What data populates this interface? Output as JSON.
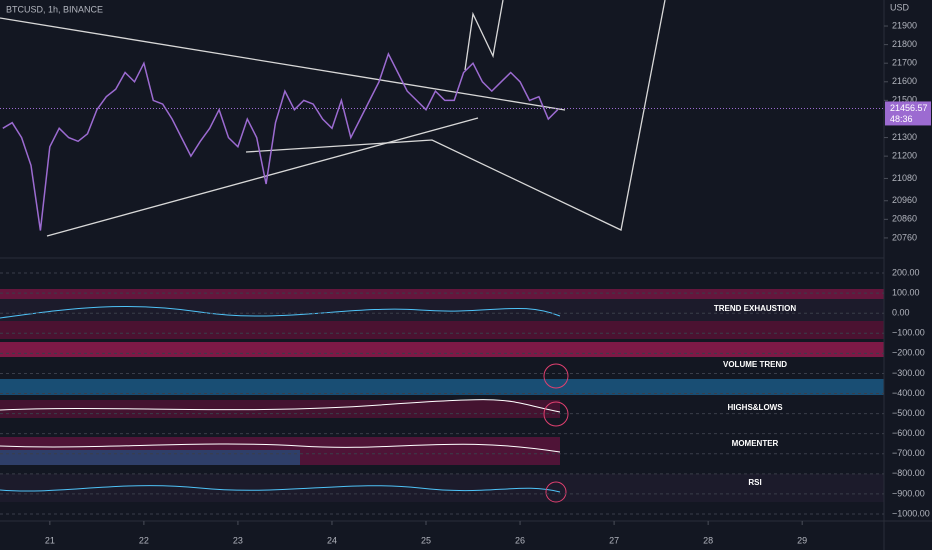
{
  "header": {
    "symbol": "BTCUSD, 1h, BINANCE",
    "currency": "USD"
  },
  "chart_data": {
    "type": "line",
    "color": "#9c6bd1",
    "x": [
      20.5,
      20.6,
      20.7,
      20.8,
      20.9,
      21.0,
      21.1,
      21.2,
      21.3,
      21.4,
      21.5,
      21.6,
      21.7,
      21.8,
      21.9,
      22.0,
      22.1,
      22.2,
      22.3,
      22.4,
      22.5,
      22.6,
      22.7,
      22.8,
      22.9,
      23.0,
      23.1,
      23.2,
      23.3,
      23.4,
      23.5,
      23.6,
      23.7,
      23.8,
      23.9,
      24.0,
      24.1,
      24.2,
      24.3,
      24.4,
      24.5,
      24.6,
      24.7,
      24.8,
      24.9,
      25.0,
      25.1,
      25.2,
      25.3,
      25.4,
      25.5,
      25.6,
      25.7,
      25.8,
      25.9,
      26.0,
      26.1,
      26.2,
      26.3,
      26.4
    ],
    "values": [
      21350,
      21380,
      21300,
      21150,
      20800,
      21250,
      21350,
      21300,
      21280,
      21320,
      21450,
      21520,
      21560,
      21650,
      21600,
      21700,
      21500,
      21480,
      21400,
      21300,
      21200,
      21280,
      21350,
      21450,
      21300,
      21250,
      21400,
      21300,
      21050,
      21380,
      21550,
      21450,
      21500,
      21480,
      21400,
      21350,
      21500,
      21300,
      21400,
      21500,
      21600,
      21750,
      21650,
      21550,
      21500,
      21450,
      21550,
      21500,
      21500,
      21650,
      21700,
      21600,
      21550,
      21600,
      21650,
      21600,
      21500,
      21520,
      21400,
      21450
    ],
    "xlim": [
      20.47,
      29.87
    ],
    "xticks": [
      21,
      22,
      23,
      24,
      25,
      26,
      27,
      28,
      29
    ],
    "ylim": [
      20652,
      22040
    ],
    "yticks": [
      21900,
      21800,
      21700,
      21600,
      21500,
      21300,
      21200,
      21080,
      20960,
      20860,
      20760
    ],
    "last_price": 21456.57,
    "countdown": "48:36"
  },
  "indicators": {
    "ylim": [
      -1035,
      275
    ],
    "yticks": [
      {
        "value": 200,
        "label": "200.00"
      },
      {
        "value": 100,
        "label": "100.00"
      },
      {
        "value": 0,
        "label": "0.00"
      },
      {
        "value": -100,
        "label": "−100.00"
      },
      {
        "value": -200,
        "label": "−200.00"
      },
      {
        "value": -300,
        "label": "−300.00"
      },
      {
        "value": -400,
        "label": "−400.00"
      },
      {
        "value": -500,
        "label": "−500.00"
      },
      {
        "value": -600,
        "label": "−600.00"
      },
      {
        "value": -700,
        "label": "−700.00"
      },
      {
        "value": -800,
        "label": "−800.00"
      },
      {
        "value": -900,
        "label": "−900.00"
      },
      {
        "value": -1000,
        "label": "−1000.00"
      }
    ],
    "labels": [
      "TREND EXHAUSTION",
      "VOLUME TREND",
      "HIGHS&LOWS",
      "MOMENTER",
      "RSI"
    ]
  }
}
